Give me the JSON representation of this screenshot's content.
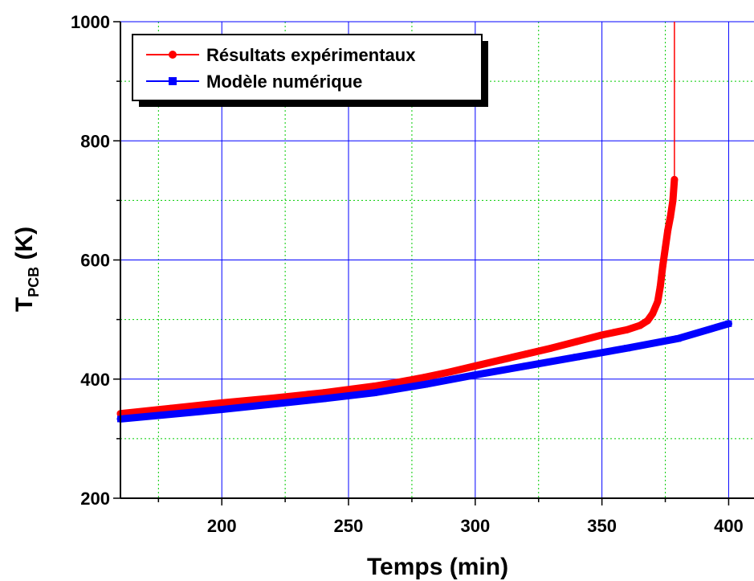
{
  "chart_data": {
    "type": "line",
    "xlabel": "Temps (min)",
    "ylabel_main": "T",
    "ylabel_sub": "PCB",
    "ylabel_unit": " (K)",
    "xlim": [
      160,
      410
    ],
    "ylim": [
      200,
      1000
    ],
    "xticks": [
      200,
      250,
      300,
      350,
      400
    ],
    "yticks": [
      200,
      400,
      600,
      800,
      1000
    ],
    "grid": true,
    "legend_position": "top-left",
    "series": [
      {
        "name": "Résultats expérimentaux",
        "color": "#ff0000",
        "marker": "circle",
        "x": [
          160,
          180,
          200,
          220,
          240,
          260,
          270,
          280,
          290,
          300,
          310,
          320,
          330,
          340,
          350,
          360,
          365,
          368,
          370,
          372,
          373,
          374,
          375,
          376,
          377,
          378,
          378.6
        ],
        "y": [
          342,
          351,
          360,
          368,
          377,
          388,
          395,
          403,
          412,
          422,
          432,
          442,
          452,
          463,
          474,
          483,
          490,
          498,
          510,
          530,
          555,
          590,
          620,
          650,
          672,
          700,
          735
        ],
        "vertical_line_x": 378.6
      },
      {
        "name": "Modèle numérique",
        "color": "#0000ff",
        "marker": "square",
        "x": [
          160,
          180,
          200,
          220,
          240,
          260,
          280,
          300,
          320,
          340,
          360,
          380,
          400
        ],
        "y": [
          333,
          341,
          349,
          358,
          367,
          377,
          391,
          407,
          422,
          437,
          452,
          468,
          493
        ]
      }
    ]
  }
}
